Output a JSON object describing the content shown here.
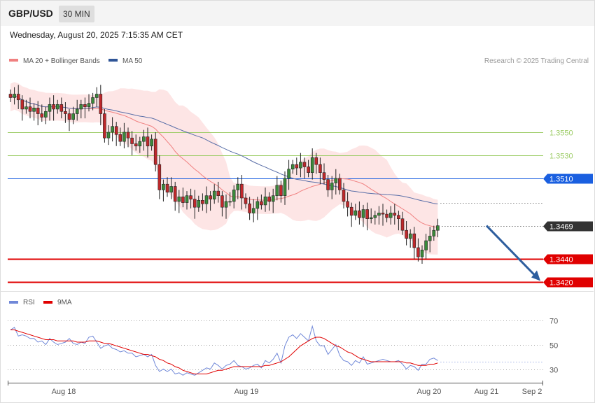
{
  "header": {
    "symbol": "GBP/USD",
    "timeframe": "30 MIN",
    "datetime": "Wednesday, August 20, 2025 7:15:35 AM CET"
  },
  "legend": {
    "ma20_bb": "MA 20 + Bollinger Bands",
    "ma50": "MA 50",
    "copyright": "Research © 2025 Trading Central",
    "rsi": "RSI",
    "rsi_ma": "9MA"
  },
  "colors": {
    "ma20": "#f08080",
    "band": "#fde0e0",
    "ma50": "#5a6fa8",
    "green_level": "#9ccc65",
    "blue_level": "#1a5fe0",
    "red_level": "#e00000",
    "current": "#333333",
    "arrow": "#2e5e9e",
    "rsi": "#7088d8",
    "rsi_ma": "#e00000"
  },
  "chart_data": [
    {
      "type": "candlestick",
      "x_labels": [
        "Aug 18",
        "Aug 19",
        "Aug 20",
        "Aug 21",
        "Sep 2"
      ],
      "ylim": [
        1.3413,
        1.3613
      ],
      "levels": [
        {
          "value": 1.355,
          "label": "1.3550",
          "kind": "resistance"
        },
        {
          "value": 1.353,
          "label": "1.3530",
          "kind": "resistance"
        },
        {
          "value": 1.351,
          "label": "1.3510",
          "kind": "pivot"
        },
        {
          "value": 1.3469,
          "label": "1.3469",
          "kind": "current"
        },
        {
          "value": 1.344,
          "label": "1.3440",
          "kind": "support"
        },
        {
          "value": 1.342,
          "label": "1.3420",
          "kind": "support"
        }
      ],
      "forecast_arrow": {
        "from": 1.3469,
        "to": 1.342
      },
      "close": [
        1.358,
        1.3583,
        1.3578,
        1.357,
        1.3572,
        1.3568,
        1.3571,
        1.3566,
        1.3563,
        1.3568,
        1.3574,
        1.357,
        1.3574,
        1.3568,
        1.3566,
        1.3561,
        1.3566,
        1.357,
        1.3574,
        1.3572,
        1.3575,
        1.358,
        1.3583,
        1.3566,
        1.3545,
        1.355,
        1.3555,
        1.3548,
        1.3542,
        1.355,
        1.3545,
        1.354,
        1.3538,
        1.3542,
        1.3546,
        1.3538,
        1.3544,
        1.3522,
        1.35,
        1.3505,
        1.3498,
        1.3503,
        1.349,
        1.3494,
        1.3489,
        1.3495,
        1.3492,
        1.3485,
        1.3491,
        1.3488,
        1.3495,
        1.3492,
        1.3499,
        1.3495,
        1.3485,
        1.349,
        1.349,
        1.35,
        1.3505,
        1.3493,
        1.3488,
        1.348,
        1.3484,
        1.349,
        1.3487,
        1.3494,
        1.349,
        1.3495,
        1.3504,
        1.3495,
        1.351,
        1.3518,
        1.3522,
        1.3519,
        1.3524,
        1.352,
        1.3515,
        1.3528,
        1.3522,
        1.3515,
        1.3509,
        1.35,
        1.3506,
        1.351,
        1.35,
        1.349,
        1.3485,
        1.3478,
        1.3482,
        1.3476,
        1.3483,
        1.3475,
        1.3476,
        1.3478,
        1.348,
        1.3479,
        1.3476,
        1.348,
        1.3478,
        1.3475,
        1.3465,
        1.3458,
        1.3462,
        1.345,
        1.3442,
        1.3448,
        1.3456,
        1.346,
        1.3465,
        1.3469
      ],
      "rsi_ylim": [
        20,
        80
      ],
      "rsi_levels": [
        70,
        50,
        30
      ],
      "rsi": [
        62,
        64,
        57,
        58,
        57,
        55,
        55,
        52,
        53,
        50,
        55,
        52,
        50,
        51,
        52,
        55,
        51,
        50,
        52,
        51,
        56,
        57,
        52,
        47,
        49,
        50,
        47,
        46,
        44,
        45,
        43,
        43,
        40,
        41,
        42,
        40,
        42,
        33,
        28,
        30,
        28,
        30,
        26,
        27,
        25,
        27,
        26,
        25,
        27,
        29,
        31,
        30,
        35,
        33,
        30,
        33,
        34,
        37,
        33,
        32,
        30,
        31,
        33,
        34,
        31,
        37,
        35,
        38,
        43,
        35,
        49,
        56,
        58,
        55,
        59,
        56,
        53,
        65,
        53,
        49,
        49,
        42,
        46,
        50,
        41,
        37,
        36,
        33,
        37,
        35,
        40,
        34,
        35,
        36,
        37,
        38,
        37,
        36,
        36,
        37,
        34,
        30,
        33,
        32,
        29,
        34,
        34,
        38,
        39,
        37
      ],
      "rsi_ma": [
        62,
        62,
        61,
        60,
        59,
        58,
        57,
        56,
        55,
        54,
        54,
        54,
        53,
        53,
        53,
        53,
        53,
        52,
        52,
        52,
        53,
        53,
        53,
        52,
        51,
        51,
        50,
        49,
        48,
        47,
        46,
        45,
        44,
        43,
        42,
        42,
        41,
        40,
        38,
        37,
        35,
        34,
        32,
        31,
        29,
        28,
        27,
        26,
        26,
        26,
        26,
        27,
        28,
        29,
        29,
        30,
        31,
        32,
        32,
        32,
        32,
        32,
        32,
        32,
        32,
        33,
        33,
        34,
        35,
        36,
        38,
        40,
        43,
        46,
        49,
        51,
        53,
        55,
        56,
        56,
        55,
        53,
        51,
        49,
        48,
        46,
        44,
        43,
        41,
        39,
        38,
        37,
        36,
        36,
        36,
        36,
        36,
        36,
        36,
        36,
        36,
        35,
        35,
        34,
        33,
        33,
        33,
        34,
        34,
        35
      ]
    }
  ]
}
